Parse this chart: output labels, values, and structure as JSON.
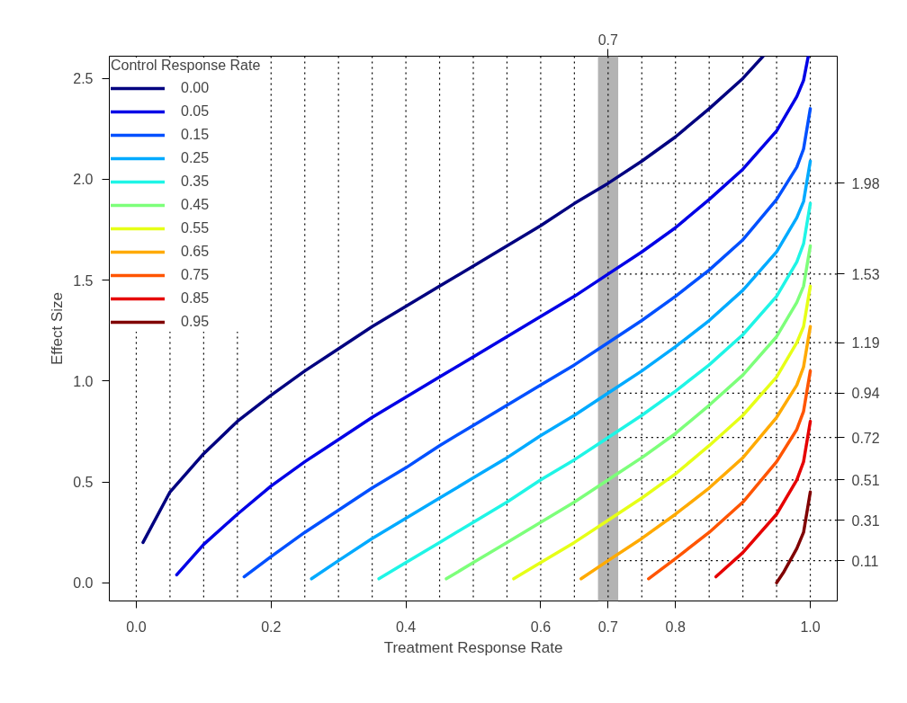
{
  "chart_data": {
    "type": "line",
    "xlabel": "Treatment Response Rate",
    "ylabel": "Effect Size",
    "legend_title": "Control Response Rate",
    "legend": "top left",
    "grid": false,
    "line_style": "solid",
    "marker": "none",
    "xlim": [
      -0.04,
      1.04
    ],
    "ylim": [
      -0.09,
      2.61
    ],
    "y2lim": [
      -0.09,
      2.61
    ],
    "xticks": [
      {
        "value": 0,
        "label": "0.0"
      },
      {
        "value": 0.2,
        "label": "0.2"
      },
      {
        "value": 0.4,
        "label": "0.4"
      },
      {
        "value": 0.6,
        "label": "0.6"
      },
      0.7,
      {
        "value": 0.8,
        "label": "0.8"
      },
      {
        "value": 1,
        "label": "1.0"
      }
    ],
    "yticks": [
      {
        "value": 0,
        "label": "0.0"
      },
      0.5,
      {
        "value": 1,
        "label": "1.0"
      },
      1.5,
      {
        "value": 2,
        "label": "2.0"
      },
      2.5
    ],
    "y2ticks": [
      0.11,
      0.31,
      0.51,
      0.72,
      0.94,
      1.19,
      1.53,
      1.98
    ],
    "bands": [
      {
        "axis": "x",
        "from": 0.685,
        "to": 0.715,
        "color": "#b3b3b3"
      }
    ],
    "ref_lines": [
      {
        "axis": "x",
        "value": 0,
        "line_style": "dotted"
      },
      {
        "axis": "x",
        "value": 0.05,
        "line_style": "dotted"
      },
      {
        "axis": "x",
        "value": 0.1,
        "line_style": "dotted"
      },
      {
        "axis": "x",
        "value": 0.15,
        "line_style": "dotted"
      },
      {
        "axis": "x",
        "value": 0.2,
        "line_style": "dotted"
      },
      {
        "axis": "x",
        "value": 0.25,
        "line_style": "dotted"
      },
      {
        "axis": "x",
        "value": 0.3,
        "line_style": "dotted"
      },
      {
        "axis": "x",
        "value": 0.35,
        "line_style": "dotted"
      },
      {
        "axis": "x",
        "value": 0.4,
        "line_style": "dotted"
      },
      {
        "axis": "x",
        "value": 0.45,
        "line_style": "dotted"
      },
      {
        "axis": "x",
        "value": 0.5,
        "line_style": "dotted"
      },
      {
        "axis": "x",
        "value": 0.55,
        "line_style": "dotted"
      },
      {
        "axis": "x",
        "value": 0.6,
        "line_style": "dotted"
      },
      {
        "axis": "x",
        "value": 0.65,
        "line_style": "dotted"
      },
      {
        "axis": "x",
        "value": 0.7,
        "line_style": "dotted",
        "label": "0.7"
      },
      {
        "axis": "x",
        "value": 0.75,
        "line_style": "dotted"
      },
      {
        "axis": "x",
        "value": 0.8,
        "line_style": "dotted"
      },
      {
        "axis": "x",
        "value": 0.85,
        "line_style": "dotted"
      },
      {
        "axis": "x",
        "value": 0.9,
        "line_style": "dotted"
      },
      {
        "axis": "x",
        "value": 0.95,
        "line_style": "dotted"
      },
      {
        "axis": "x",
        "value": 1.0,
        "line_style": "dotted"
      },
      {
        "axis": "y2",
        "value": 0.11,
        "line_style": "dotted"
      },
      {
        "axis": "y2",
        "value": 0.31,
        "line_style": "dotted"
      },
      {
        "axis": "y2",
        "value": 0.51,
        "line_style": "dotted"
      },
      {
        "axis": "y2",
        "value": 0.72,
        "line_style": "dotted"
      },
      {
        "axis": "y2",
        "value": 0.94,
        "line_style": "dotted"
      },
      {
        "axis": "y2",
        "value": 1.19,
        "line_style": "dotted"
      },
      {
        "axis": "y2",
        "value": 1.53,
        "line_style": "dotted"
      },
      {
        "axis": "y2",
        "value": 1.98,
        "line_style": "dotted"
      }
    ],
    "series": [
      {
        "name": "0.00",
        "color": "#000080",
        "x": [
          0.01,
          0.05,
          0.1,
          0.15,
          0.2,
          0.25,
          0.3,
          0.35,
          0.4,
          0.45,
          0.5,
          0.55,
          0.6,
          0.65,
          0.7,
          0.75,
          0.8,
          0.85,
          0.9,
          0.93
        ],
        "values": [
          0.2,
          0.45,
          0.64,
          0.8,
          0.93,
          1.05,
          1.16,
          1.27,
          1.37,
          1.47,
          1.57,
          1.67,
          1.77,
          1.88,
          1.98,
          2.09,
          2.21,
          2.35,
          2.5,
          2.61
        ]
      },
      {
        "name": "0.05",
        "color": "#0000e6",
        "x": [
          0.06,
          0.1,
          0.15,
          0.2,
          0.25,
          0.3,
          0.35,
          0.4,
          0.45,
          0.5,
          0.55,
          0.6,
          0.65,
          0.7,
          0.75,
          0.8,
          0.85,
          0.9,
          0.95,
          0.98,
          0.99,
          0.997
        ],
        "values": [
          0.04,
          0.19,
          0.34,
          0.48,
          0.6,
          0.71,
          0.82,
          0.92,
          1.02,
          1.12,
          1.22,
          1.32,
          1.42,
          1.53,
          1.64,
          1.76,
          1.9,
          2.05,
          2.24,
          2.41,
          2.49,
          2.61
        ]
      },
      {
        "name": "0.15",
        "color": "#0050ff",
        "x": [
          0.16,
          0.2,
          0.25,
          0.3,
          0.35,
          0.4,
          0.45,
          0.5,
          0.55,
          0.6,
          0.65,
          0.7,
          0.75,
          0.8,
          0.85,
          0.9,
          0.95,
          0.98,
          0.99,
          1.0
        ],
        "values": [
          0.03,
          0.13,
          0.25,
          0.36,
          0.47,
          0.57,
          0.68,
          0.78,
          0.88,
          0.98,
          1.08,
          1.19,
          1.3,
          1.42,
          1.55,
          1.7,
          1.9,
          2.06,
          2.15,
          2.35
        ]
      },
      {
        "name": "0.25",
        "color": "#00aaff",
        "x": [
          0.26,
          0.3,
          0.35,
          0.4,
          0.45,
          0.5,
          0.55,
          0.6,
          0.65,
          0.7,
          0.75,
          0.8,
          0.85,
          0.9,
          0.95,
          0.98,
          0.99,
          1.0
        ],
        "values": [
          0.02,
          0.11,
          0.22,
          0.32,
          0.42,
          0.52,
          0.62,
          0.73,
          0.83,
          0.94,
          1.05,
          1.17,
          1.3,
          1.45,
          1.64,
          1.81,
          1.89,
          2.09
        ]
      },
      {
        "name": "0.35",
        "color": "#1ff5e6",
        "x": [
          0.36,
          0.4,
          0.45,
          0.5,
          0.55,
          0.6,
          0.65,
          0.7,
          0.75,
          0.8,
          0.85,
          0.9,
          0.95,
          0.98,
          0.99,
          1.0
        ],
        "values": [
          0.02,
          0.1,
          0.2,
          0.3,
          0.4,
          0.51,
          0.61,
          0.72,
          0.83,
          0.95,
          1.08,
          1.23,
          1.42,
          1.59,
          1.68,
          1.88
        ]
      },
      {
        "name": "0.45",
        "color": "#7dff7a",
        "x": [
          0.46,
          0.5,
          0.55,
          0.6,
          0.65,
          0.7,
          0.75,
          0.8,
          0.85,
          0.9,
          0.95,
          0.98,
          0.99,
          1.0
        ],
        "values": [
          0.02,
          0.1,
          0.2,
          0.3,
          0.4,
          0.51,
          0.62,
          0.74,
          0.88,
          1.03,
          1.22,
          1.39,
          1.47,
          1.67
        ]
      },
      {
        "name": "0.55",
        "color": "#e6ff17",
        "x": [
          0.56,
          0.6,
          0.65,
          0.7,
          0.75,
          0.8,
          0.85,
          0.9,
          0.95,
          0.98,
          0.99,
          1.0
        ],
        "values": [
          0.02,
          0.1,
          0.2,
          0.31,
          0.42,
          0.54,
          0.68,
          0.83,
          1.02,
          1.19,
          1.27,
          1.47
        ]
      },
      {
        "name": "0.65",
        "color": "#ffaa00",
        "x": [
          0.66,
          0.7,
          0.75,
          0.8,
          0.85,
          0.9,
          0.95,
          0.98,
          0.99,
          1.0
        ],
        "values": [
          0.02,
          0.11,
          0.22,
          0.34,
          0.47,
          0.62,
          0.82,
          0.98,
          1.07,
          1.27
        ]
      },
      {
        "name": "0.75",
        "color": "#ff5500",
        "x": [
          0.76,
          0.8,
          0.85,
          0.9,
          0.95,
          0.98,
          0.99,
          1.0
        ],
        "values": [
          0.02,
          0.12,
          0.25,
          0.4,
          0.6,
          0.76,
          0.85,
          1.05
        ]
      },
      {
        "name": "0.85",
        "color": "#e60000",
        "x": [
          0.86,
          0.9,
          0.95,
          0.98,
          0.99,
          1.0
        ],
        "values": [
          0.03,
          0.15,
          0.34,
          0.51,
          0.6,
          0.8
        ]
      },
      {
        "name": "0.95",
        "color": "#800000",
        "x": [
          0.95,
          0.96,
          0.98,
          0.99,
          1.0
        ],
        "values": [
          0.0,
          0.05,
          0.17,
          0.25,
          0.45
        ]
      }
    ]
  }
}
